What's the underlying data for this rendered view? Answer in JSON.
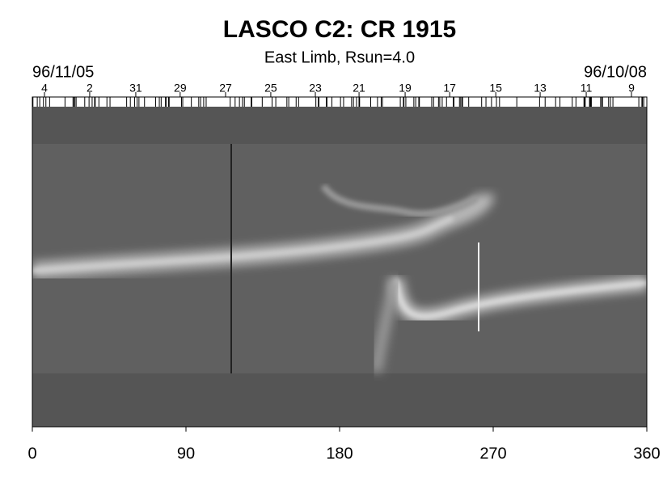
{
  "chart_data": {
    "type": "synoptic-map",
    "title": "LASCO C2: CR 1915",
    "subtitle": "East Limb, Rsun=4.0",
    "start_date": "96/11/05",
    "end_date": "96/10/08",
    "xlim": [
      0,
      360
    ],
    "xticks": [
      0,
      90,
      180,
      270,
      360
    ],
    "x2ticks": [
      {
        "value": 7.1,
        "label": "4"
      },
      {
        "value": 33.6,
        "label": "2"
      },
      {
        "value": 60.6,
        "label": "31"
      },
      {
        "value": 86.6,
        "label": "29"
      },
      {
        "value": 113.2,
        "label": "27"
      },
      {
        "value": 139.7,
        "label": "25"
      },
      {
        "value": 165.8,
        "label": "23"
      },
      {
        "value": 191.4,
        "label": "21"
      },
      {
        "value": 218.4,
        "label": "19"
      },
      {
        "value": 244.5,
        "label": "17"
      },
      {
        "value": 271.5,
        "label": "15"
      },
      {
        "value": 297.5,
        "label": "13"
      },
      {
        "value": 324.5,
        "label": "11"
      },
      {
        "value": 351,
        "label": "9"
      }
    ]
  }
}
